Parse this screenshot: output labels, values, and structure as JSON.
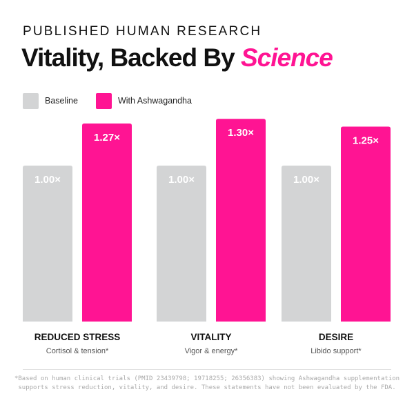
{
  "header": {
    "eyebrow": "PUBLISHED HUMAN RESEARCH",
    "headline_main": "Vitality, Backed By ",
    "headline_accent": "Science"
  },
  "colors": {
    "accent": "#ff1493",
    "baseline": "#d3d4d5",
    "text": "#111111",
    "muted": "#a9a9a9"
  },
  "legend": {
    "items": [
      {
        "label": "Baseline",
        "color": "#d3d4d5"
      },
      {
        "label": "With Ashwagandha",
        "color": "#ff1493"
      }
    ]
  },
  "chart_data": {
    "type": "bar",
    "title": "Vitality, Backed By Science",
    "categories": [
      "REDUCED STRESS",
      "VITALITY",
      "DESIRE"
    ],
    "category_sublabels": [
      "Cortisol & tension*",
      "Vigor & energy*",
      "Libido support*"
    ],
    "series": [
      {
        "name": "Baseline",
        "color": "#d3d4d5",
        "values": [
          1.0,
          1.0,
          1.0
        ],
        "data_labels": [
          "1.00×",
          "1.00×",
          "1.00×"
        ]
      },
      {
        "name": "With Ashwagandha",
        "color": "#ff1493",
        "values": [
          1.27,
          1.3,
          1.25
        ],
        "data_labels": [
          "1.27×",
          "1.30×",
          "1.25×"
        ]
      }
    ],
    "xlabel": "",
    "ylabel": "",
    "grid": false,
    "legend_position": "top-left"
  },
  "footnote": "*Based on human clinical trials (PMID 23439798; 19718255; 26356383) showing Ashwagandha supplementation supports stress reduction, vitality, and desire. These statements have not been evaluated by the FDA."
}
